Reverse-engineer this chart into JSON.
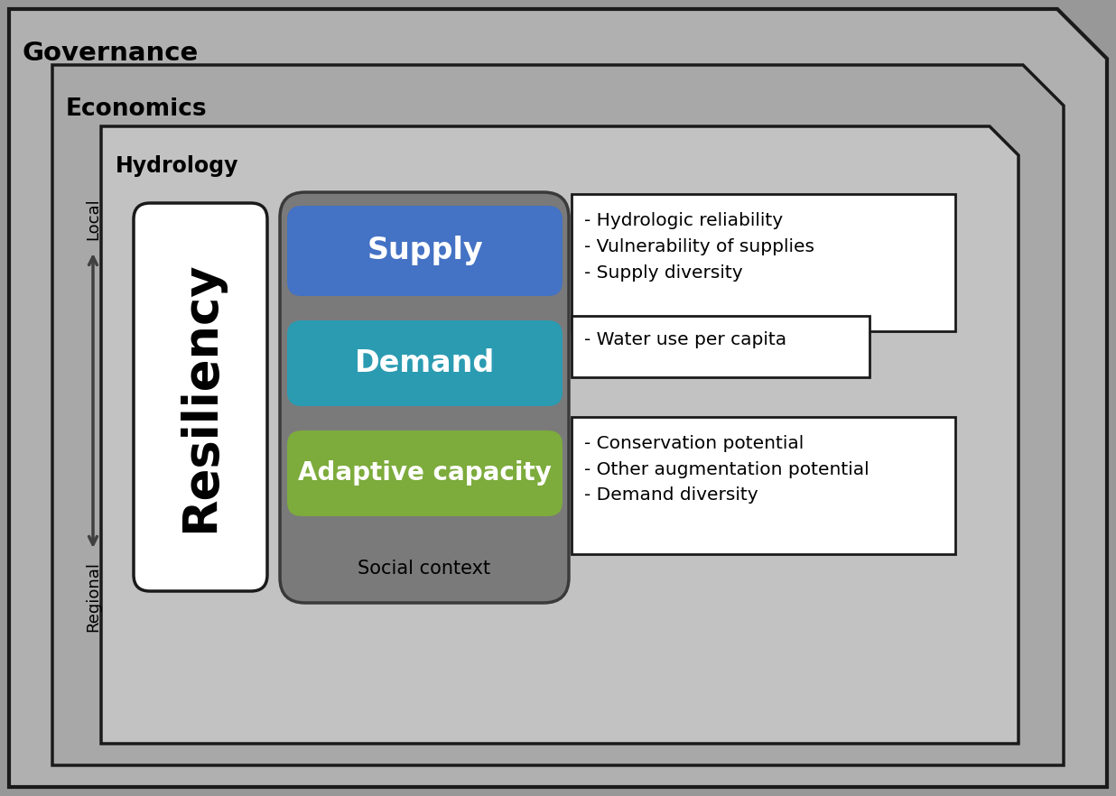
{
  "bg_outer": "#989898",
  "gov_color": "#b0b0b0",
  "eco_color": "#a8a8a8",
  "hyd_color": "#c2c2c2",
  "border_color": "#1a1a1a",
  "supply_color": "#4472c4",
  "demand_color": "#2b9bb2",
  "adaptive_color": "#7dab3c",
  "social_context_color": "#7a7a7a",
  "resiliency_bg": "#ffffff",
  "white_box_bg": "#ffffff",
  "label_governance": "Governance",
  "label_economics": "Economics",
  "label_hydrology": "Hydrology",
  "label_resiliency": "Resiliency",
  "label_supply": "Supply",
  "label_demand": "Demand",
  "label_adaptive": "Adaptive capacity",
  "label_social": "Social context",
  "label_regional": "Regional",
  "label_local": "Local",
  "supply_bullets": "- Hydrologic reliability\n- Vulnerability of supplies\n- Supply diversity",
  "demand_bullets": "- Water use per capita",
  "adaptive_bullets": "- Conservation potential\n- Other augmentation potential\n- Demand diversity",
  "arrow_color": "#404040",
  "figw": 12.36,
  "figh": 8.82,
  "dpi": 100
}
